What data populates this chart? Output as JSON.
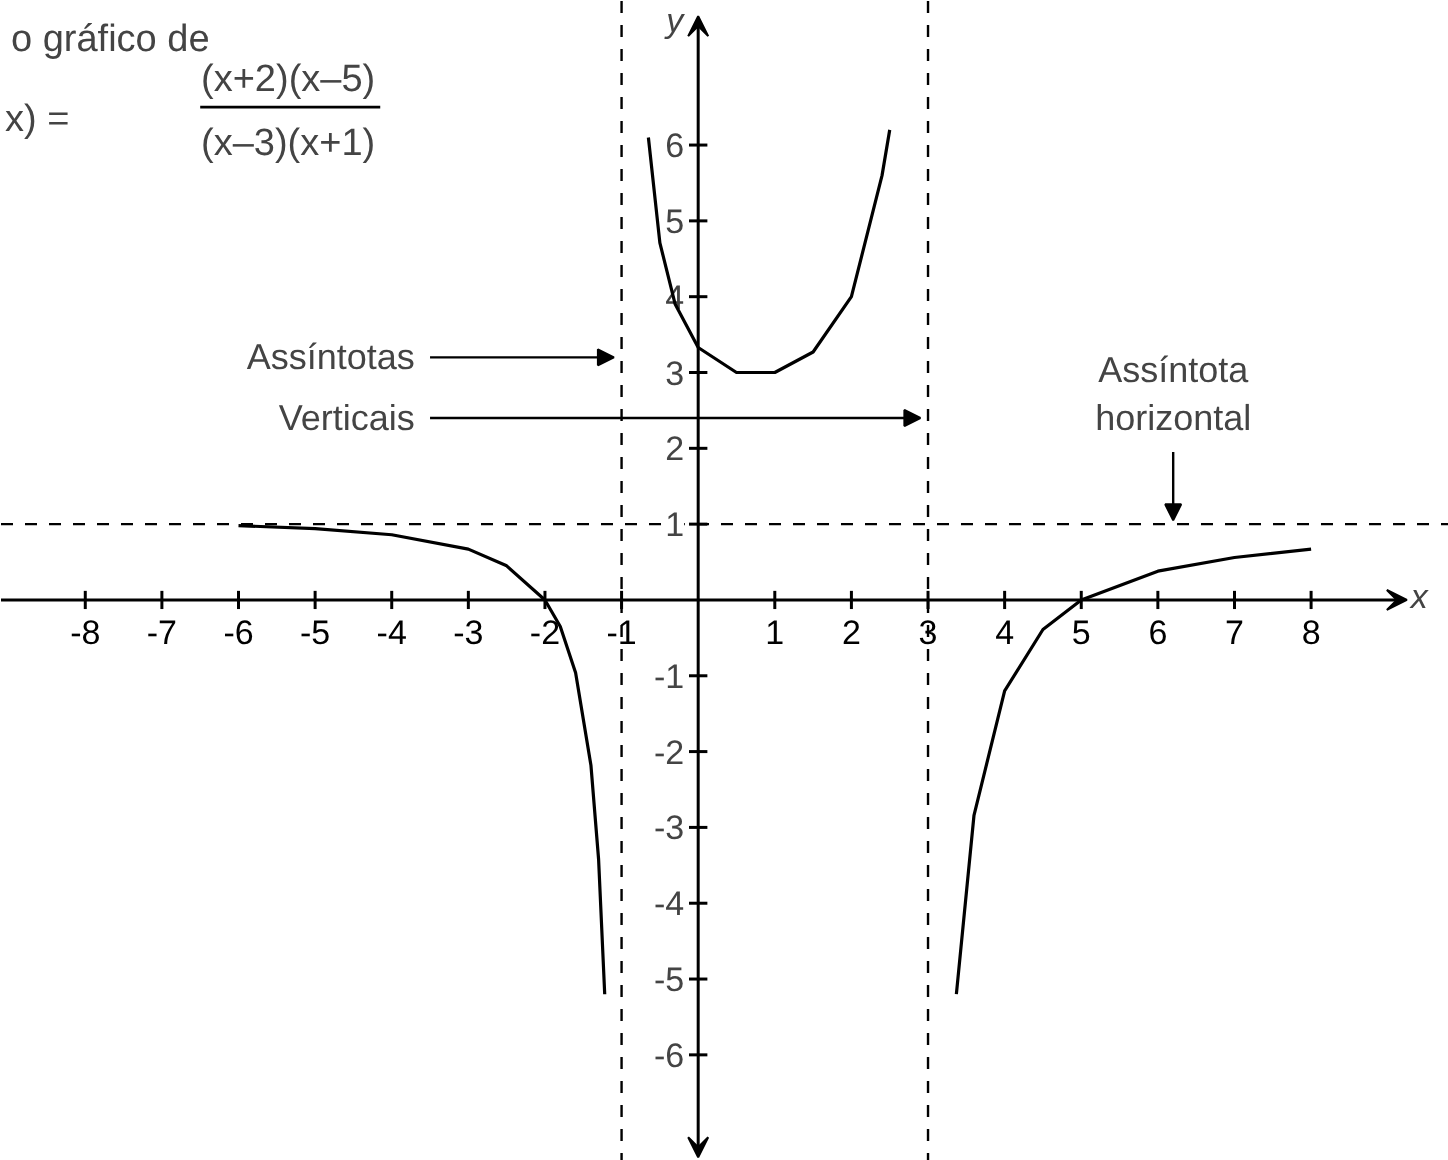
{
  "chart_data": {
    "type": "line",
    "title": "o gráfico de",
    "xlabel": "x",
    "ylabel": "y",
    "annotations": [
      "x) =",
      "(x+2)(x–5)",
      "(x–3)(x+1)",
      {
        "text": "Assíntotas",
        "x": -1,
        "y": 3.2
      },
      {
        "text": "Verticais",
        "x": 3,
        "y": 2.4
      },
      {
        "text": "Assíntota\nhorizontal",
        "x": 6.2,
        "y": 1
      }
    ],
    "series": [
      {
        "color": "#000000",
        "x": [
          -6,
          -5,
          -4,
          -3,
          -2.5,
          -2,
          -1.8,
          -1.6,
          -1.4,
          -1.3,
          -1.22
        ],
        "values": [
          0.98,
          0.94,
          0.86,
          0.67,
          0.45,
          0,
          -0.35,
          -0.96,
          -2.18,
          -3.42,
          -5.2
        ]
      },
      {
        "color": "#000000",
        "x": [
          -0.65,
          -0.5,
          -0.3,
          0,
          0.5,
          1,
          1.5,
          2,
          2.4,
          2.5
        ],
        "values": [
          6.1,
          4.71,
          3.9,
          3.33,
          3.0,
          3.0,
          3.27,
          4.0,
          5.6,
          6.2
        ]
      },
      {
        "color": "#000000",
        "x": [
          3.37,
          3.6,
          4,
          4.5,
          5,
          6,
          7,
          8
        ],
        "values": [
          -5.2,
          -2.84,
          -1.2,
          -0.39,
          0,
          0.38,
          0.56,
          0.67
        ]
      }
    ],
    "ref_lines": [
      {
        "axis": "x",
        "value": -1,
        "line_style": "dashed"
      },
      {
        "axis": "x",
        "value": 3,
        "line_style": "dashed"
      },
      {
        "axis": "y",
        "value": 1,
        "line_style": "dashed"
      }
    ],
    "xlim": [
      -9.1,
      9.8
    ],
    "ylim": [
      -7.4,
      7.9
    ],
    "xticks": [
      -8,
      -7,
      -6,
      -5,
      -4,
      -3,
      -2,
      -1,
      1,
      2,
      3,
      4,
      5,
      6,
      7,
      8
    ],
    "yticks": [
      -6,
      -5,
      -4,
      -3,
      -2,
      -1,
      1,
      2,
      3,
      4,
      5,
      6
    ],
    "grid": false,
    "marker": "none",
    "line_style": "solid"
  }
}
